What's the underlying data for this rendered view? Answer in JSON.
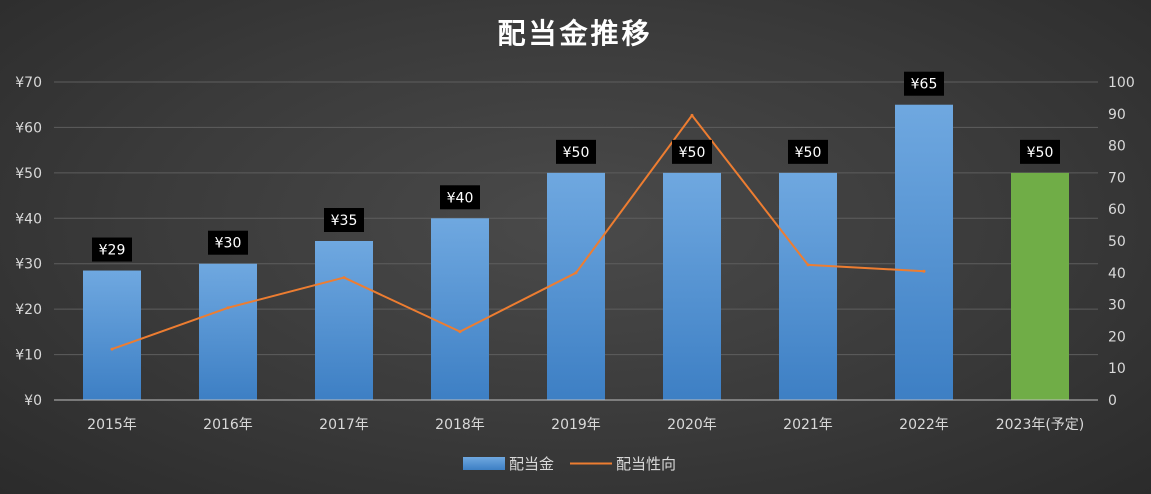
{
  "chart_data": {
    "type": "bar",
    "title": "配当金推移",
    "categories": [
      "2015年",
      "2016年",
      "2017年",
      "2018年",
      "2019年",
      "2020年",
      "2021年",
      "2022年",
      "2023年(予定)"
    ],
    "series": [
      {
        "name": "配当金",
        "type": "bar",
        "axis": "left",
        "values": [
          28.5,
          30,
          35,
          40,
          50,
          50,
          50,
          65,
          50
        ],
        "data_labels": [
          "¥29",
          "¥30",
          "¥35",
          "¥40",
          "¥50",
          "¥50",
          "¥50",
          "¥65",
          "¥50"
        ],
        "color": "#5b9bd5",
        "highlight_index": 8,
        "highlight_color": "#70ad47"
      },
      {
        "name": "配当性向",
        "type": "line",
        "axis": "right",
        "values": [
          16,
          29,
          38.5,
          21.5,
          40,
          89.5,
          42.5,
          40.5,
          null
        ],
        "color": "#ed7d31"
      }
    ],
    "y_left": {
      "min": 0,
      "max": 70,
      "step": 10,
      "tick_labels": [
        "¥0",
        "¥10",
        "¥20",
        "¥30",
        "¥40",
        "¥50",
        "¥60",
        "¥70"
      ]
    },
    "y_right": {
      "min": 0,
      "max": 100,
      "step": 10,
      "tick_labels": [
        "0",
        "10",
        "20",
        "30",
        "40",
        "50",
        "60",
        "70",
        "80",
        "90",
        "100"
      ]
    },
    "grid": true,
    "legend": "bottom"
  }
}
